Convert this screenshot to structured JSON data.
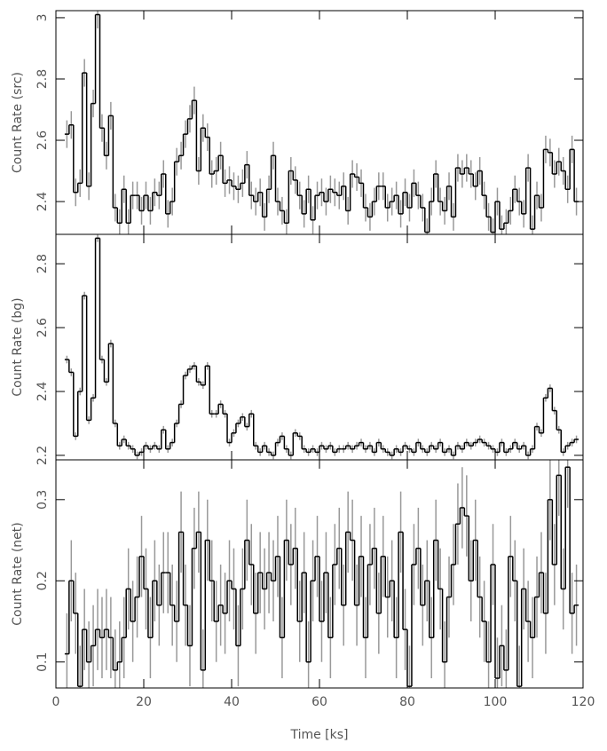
{
  "chart_data": {
    "type": "step",
    "xlabel": "Time [ks]",
    "xlim": [
      0,
      120
    ],
    "xticks": [
      0,
      20,
      40,
      60,
      80,
      100,
      120
    ],
    "x": [
      2.5,
      3.5,
      4.5,
      5.5,
      6.5,
      7.5,
      8.5,
      9.5,
      10.5,
      11.5,
      12.5,
      13.5,
      14.5,
      15.5,
      16.5,
      17.5,
      18.5,
      19.5,
      20.5,
      21.5,
      22.5,
      23.5,
      24.5,
      25.5,
      26.5,
      27.5,
      28.5,
      29.5,
      30.5,
      31.5,
      32.5,
      33.5,
      34.5,
      35.5,
      36.5,
      37.5,
      38.5,
      39.5,
      40.5,
      41.5,
      42.5,
      43.5,
      44.5,
      45.5,
      46.5,
      47.5,
      48.5,
      49.5,
      50.5,
      51.5,
      52.5,
      53.5,
      54.5,
      55.5,
      56.5,
      57.5,
      58.5,
      59.5,
      60.5,
      61.5,
      62.5,
      63.5,
      64.5,
      65.5,
      66.5,
      67.5,
      68.5,
      69.5,
      70.5,
      71.5,
      72.5,
      73.5,
      74.5,
      75.5,
      76.5,
      77.5,
      78.5,
      79.5,
      80.5,
      81.5,
      82.5,
      83.5,
      84.5,
      85.5,
      86.5,
      87.5,
      88.5,
      89.5,
      90.5,
      91.5,
      92.5,
      93.5,
      94.5,
      95.5,
      96.5,
      97.5,
      98.5,
      99.5,
      100.5,
      101.5,
      102.5,
      103.5,
      104.5,
      105.5,
      106.5,
      107.5,
      108.5,
      109.5,
      110.5,
      111.5,
      112.5,
      113.5,
      114.5,
      115.5,
      116.5,
      117.5,
      118.5
    ],
    "panels": [
      {
        "ylabel": "Count Rate (src)",
        "ylim": [
          2.293,
          3.023
        ],
        "yticks": [
          2.4,
          2.6,
          2.8,
          3
        ],
        "color": "#000000",
        "error_color": "#999999",
        "error": 0.045,
        "values": [
          2.62,
          2.65,
          2.43,
          2.46,
          2.82,
          2.45,
          2.72,
          3.01,
          2.64,
          2.55,
          2.68,
          2.38,
          2.33,
          2.44,
          2.33,
          2.42,
          2.42,
          2.37,
          2.42,
          2.37,
          2.43,
          2.42,
          2.49,
          2.36,
          2.4,
          2.53,
          2.55,
          2.62,
          2.67,
          2.73,
          2.5,
          2.64,
          2.61,
          2.49,
          2.5,
          2.55,
          2.46,
          2.47,
          2.45,
          2.44,
          2.46,
          2.52,
          2.42,
          2.4,
          2.43,
          2.35,
          2.44,
          2.55,
          2.4,
          2.37,
          2.33,
          2.5,
          2.47,
          2.42,
          2.36,
          2.44,
          2.34,
          2.42,
          2.43,
          2.4,
          2.44,
          2.43,
          2.42,
          2.45,
          2.37,
          2.49,
          2.48,
          2.46,
          2.38,
          2.35,
          2.4,
          2.45,
          2.45,
          2.38,
          2.4,
          2.42,
          2.36,
          2.43,
          2.38,
          2.46,
          2.42,
          2.38,
          2.3,
          2.4,
          2.49,
          2.4,
          2.37,
          2.45,
          2.35,
          2.51,
          2.49,
          2.51,
          2.49,
          2.45,
          2.5,
          2.42,
          2.35,
          2.3,
          2.4,
          2.31,
          2.33,
          2.37,
          2.44,
          2.4,
          2.36,
          2.51,
          2.31,
          2.42,
          2.38,
          2.57,
          2.56,
          2.49,
          2.53,
          2.5,
          2.44,
          2.57,
          2.4
        ]
      },
      {
        "ylabel": "Count Rate (bg)",
        "ylim": [
          2.186,
          2.892
        ],
        "yticks": [
          2.2,
          2.4,
          2.6,
          2.8
        ],
        "color": "#000000",
        "error_color": "#999999",
        "error": 0.012,
        "values": [
          2.5,
          2.46,
          2.26,
          2.4,
          2.7,
          2.31,
          2.38,
          2.88,
          2.5,
          2.43,
          2.55,
          2.3,
          2.23,
          2.25,
          2.23,
          2.22,
          2.2,
          2.21,
          2.23,
          2.22,
          2.23,
          2.22,
          2.28,
          2.22,
          2.24,
          2.3,
          2.36,
          2.45,
          2.47,
          2.48,
          2.43,
          2.42,
          2.48,
          2.33,
          2.33,
          2.36,
          2.33,
          2.24,
          2.27,
          2.3,
          2.32,
          2.29,
          2.33,
          2.23,
          2.21,
          2.23,
          2.21,
          2.2,
          2.24,
          2.26,
          2.22,
          2.2,
          2.27,
          2.26,
          2.22,
          2.21,
          2.22,
          2.21,
          2.23,
          2.22,
          2.23,
          2.21,
          2.22,
          2.22,
          2.23,
          2.22,
          2.23,
          2.24,
          2.22,
          2.23,
          2.21,
          2.24,
          2.22,
          2.21,
          2.2,
          2.22,
          2.21,
          2.23,
          2.22,
          2.21,
          2.24,
          2.22,
          2.21,
          2.23,
          2.22,
          2.24,
          2.21,
          2.22,
          2.2,
          2.23,
          2.22,
          2.24,
          2.23,
          2.24,
          2.25,
          2.24,
          2.23,
          2.22,
          2.21,
          2.24,
          2.21,
          2.22,
          2.24,
          2.22,
          2.23,
          2.2,
          2.22,
          2.29,
          2.27,
          2.38,
          2.41,
          2.34,
          2.28,
          2.21,
          2.23,
          2.24,
          2.25
        ]
      },
      {
        "ylabel": "Count Rate (net)",
        "ylim": [
          0.068,
          0.349
        ],
        "yticks": [
          0.1,
          0.2,
          0.3
        ],
        "color": "#000000",
        "error_color": "#999999",
        "error": 0.05,
        "values": [
          0.11,
          0.2,
          0.16,
          0.07,
          0.14,
          0.1,
          0.12,
          0.14,
          0.13,
          0.14,
          0.13,
          0.09,
          0.1,
          0.13,
          0.19,
          0.15,
          0.18,
          0.23,
          0.19,
          0.13,
          0.2,
          0.17,
          0.21,
          0.21,
          0.17,
          0.15,
          0.26,
          0.17,
          0.12,
          0.24,
          0.26,
          0.09,
          0.25,
          0.2,
          0.15,
          0.17,
          0.16,
          0.2,
          0.19,
          0.12,
          0.19,
          0.25,
          0.22,
          0.16,
          0.21,
          0.19,
          0.21,
          0.2,
          0.23,
          0.13,
          0.25,
          0.22,
          0.24,
          0.15,
          0.21,
          0.1,
          0.2,
          0.23,
          0.15,
          0.21,
          0.13,
          0.22,
          0.24,
          0.17,
          0.26,
          0.25,
          0.17,
          0.23,
          0.13,
          0.22,
          0.24,
          0.16,
          0.23,
          0.18,
          0.2,
          0.13,
          0.26,
          0.14,
          0.07,
          0.22,
          0.24,
          0.17,
          0.2,
          0.13,
          0.25,
          0.19,
          0.1,
          0.18,
          0.22,
          0.27,
          0.29,
          0.28,
          0.2,
          0.25,
          0.18,
          0.15,
          0.1,
          0.22,
          0.08,
          0.12,
          0.09,
          0.23,
          0.2,
          0.07,
          0.19,
          0.15,
          0.13,
          0.18,
          0.21,
          0.16,
          0.3,
          0.22,
          0.33,
          0.19,
          0.34,
          0.16,
          0.17
        ]
      }
    ]
  }
}
